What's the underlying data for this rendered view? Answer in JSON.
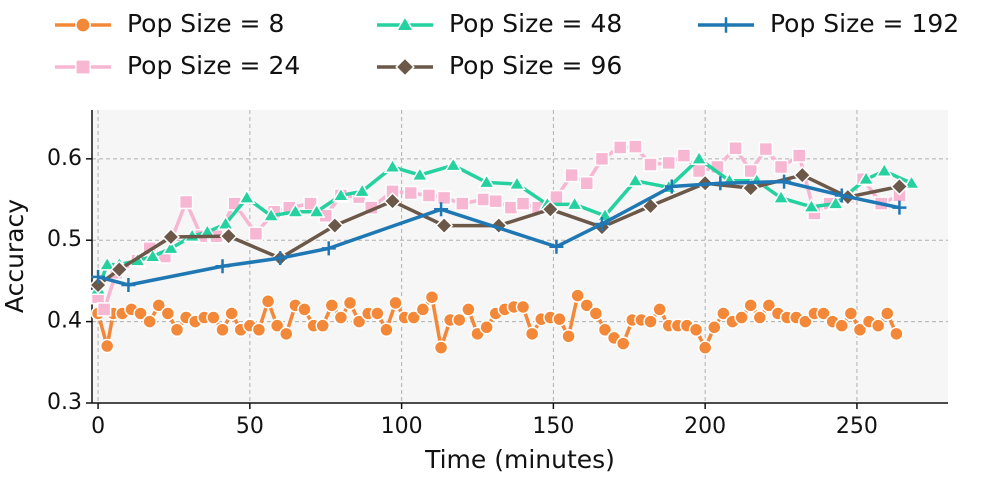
{
  "chart_data": {
    "type": "line",
    "xlabel": "Time (minutes)",
    "ylabel": "Accuracy",
    "xlim": [
      -2,
      280
    ],
    "xticks": [
      0,
      50,
      100,
      150,
      200,
      250
    ],
    "ylim": [
      0.3,
      0.66
    ],
    "yticks": [
      0.3,
      0.4,
      0.5,
      0.6
    ],
    "grid": true,
    "legend": "top",
    "series": [
      {
        "name": "Pop Size = 8",
        "color": "#f28838",
        "marker": "circle",
        "x": [
          0,
          3,
          5,
          8,
          11,
          14,
          17,
          20,
          23,
          26,
          29,
          32,
          35,
          38,
          41,
          44,
          47,
          50,
          53,
          56,
          59,
          62,
          65,
          68,
          71,
          74,
          77,
          80,
          83,
          86,
          89,
          92,
          95,
          98,
          101,
          104,
          107,
          110,
          113,
          116,
          119,
          122,
          125,
          128,
          131,
          134,
          137,
          140,
          143,
          146,
          149,
          152,
          155,
          158,
          161,
          164,
          167,
          170,
          173,
          176,
          179,
          182,
          185,
          188,
          191,
          194,
          197,
          200,
          203,
          206,
          209,
          212,
          215,
          218,
          221,
          224,
          227,
          230,
          233,
          236,
          239,
          242,
          245,
          248,
          251,
          254,
          257,
          260,
          263
        ],
        "values": [
          0.41,
          0.37,
          0.41,
          0.41,
          0.415,
          0.41,
          0.4,
          0.42,
          0.41,
          0.39,
          0.405,
          0.4,
          0.405,
          0.405,
          0.39,
          0.41,
          0.39,
          0.395,
          0.39,
          0.425,
          0.395,
          0.385,
          0.42,
          0.415,
          0.395,
          0.395,
          0.42,
          0.405,
          0.423,
          0.4,
          0.41,
          0.41,
          0.39,
          0.423,
          0.405,
          0.405,
          0.415,
          0.43,
          0.368,
          0.402,
          0.402,
          0.415,
          0.385,
          0.393,
          0.41,
          0.415,
          0.418,
          0.418,
          0.385,
          0.403,
          0.405,
          0.403,
          0.382,
          0.432,
          0.42,
          0.41,
          0.39,
          0.38,
          0.373,
          0.402,
          0.402,
          0.4,
          0.415,
          0.395,
          0.395,
          0.395,
          0.39,
          0.368,
          0.393,
          0.41,
          0.4,
          0.405,
          0.42,
          0.405,
          0.42,
          0.41,
          0.405,
          0.405,
          0.4,
          0.41,
          0.41,
          0.4,
          0.395,
          0.41,
          0.39,
          0.4,
          0.395,
          0.41,
          0.385
        ]
      },
      {
        "name": "Pop Size = 24",
        "color": "#f7b6d2",
        "marker": "square",
        "x": [
          0,
          2,
          6,
          13,
          17,
          22,
          29,
          34,
          39,
          45,
          52,
          58,
          63,
          70,
          75,
          80,
          86,
          90,
          97,
          103,
          109,
          114,
          120,
          127,
          131,
          136,
          140,
          145,
          151,
          156,
          161,
          166,
          172,
          177,
          182,
          188,
          193,
          198,
          204,
          210,
          215,
          220,
          225,
          231,
          236,
          241,
          247,
          252,
          258,
          264
        ],
        "values": [
          0.43,
          0.415,
          0.46,
          0.475,
          0.49,
          0.48,
          0.547,
          0.505,
          0.505,
          0.545,
          0.508,
          0.535,
          0.54,
          0.545,
          0.53,
          0.555,
          0.553,
          0.54,
          0.56,
          0.558,
          0.555,
          0.552,
          0.545,
          0.55,
          0.548,
          0.54,
          0.545,
          0.54,
          0.553,
          0.58,
          0.57,
          0.6,
          0.614,
          0.615,
          0.593,
          0.595,
          0.604,
          0.585,
          0.59,
          0.613,
          0.585,
          0.612,
          0.59,
          0.604,
          0.533,
          0.545,
          0.553,
          0.575,
          0.545,
          0.555
        ]
      },
      {
        "name": "Pop Size = 48",
        "color": "#24d19f",
        "marker": "triangle",
        "x": [
          0,
          3,
          7,
          13,
          18,
          24,
          31,
          36,
          42,
          49,
          57,
          65,
          72,
          80,
          87,
          97,
          106,
          117,
          128,
          138,
          148,
          157,
          167,
          177,
          188,
          198,
          208,
          217,
          225,
          235,
          243,
          253,
          259,
          268
        ],
        "values": [
          0.44,
          0.47,
          0.47,
          0.475,
          0.48,
          0.49,
          0.505,
          0.51,
          0.52,
          0.552,
          0.53,
          0.535,
          0.535,
          0.555,
          0.56,
          0.59,
          0.58,
          0.592,
          0.571,
          0.569,
          0.544,
          0.544,
          0.53,
          0.573,
          0.565,
          0.6,
          0.573,
          0.573,
          0.552,
          0.541,
          0.545,
          0.575,
          0.585,
          0.57
        ]
      },
      {
        "name": "Pop Size = 96",
        "color": "#6b5848",
        "marker": "diamond",
        "x": [
          0,
          7,
          24,
          43,
          60,
          78,
          97,
          114,
          132,
          149,
          166,
          182,
          200,
          215,
          232,
          247,
          264
        ],
        "values": [
          0.445,
          0.464,
          0.504,
          0.505,
          0.478,
          0.518,
          0.548,
          0.518,
          0.518,
          0.538,
          0.516,
          0.542,
          0.57,
          0.564,
          0.58,
          0.553,
          0.566
        ]
      },
      {
        "name": "Pop Size = 192",
        "color": "#1f77b4",
        "marker": "plus",
        "x": [
          0,
          10,
          41,
          60,
          76,
          113,
          151,
          166,
          189,
          205,
          226,
          245,
          264
        ],
        "values": [
          0.455,
          0.445,
          0.468,
          0.478,
          0.49,
          0.538,
          0.492,
          0.52,
          0.566,
          0.57,
          0.572,
          0.555,
          0.54
        ]
      }
    ]
  }
}
